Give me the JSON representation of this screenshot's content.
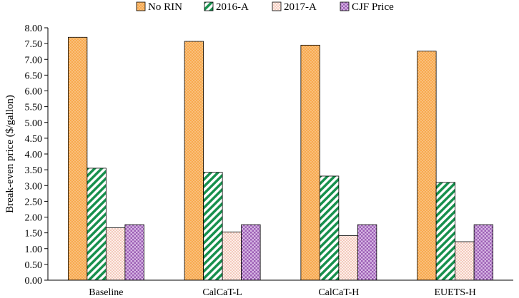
{
  "chart_data": {
    "type": "bar",
    "title": "",
    "xlabel": "",
    "ylabel": "Break-even price ($/gallon)",
    "ylim": [
      0,
      8
    ],
    "yticks": [
      "0.00",
      "0.50",
      "1.00",
      "1.50",
      "2.00",
      "2.50",
      "3.00",
      "3.50",
      "4.00",
      "4.50",
      "5.00",
      "5.50",
      "6.00",
      "6.50",
      "7.00",
      "7.50",
      "8.00"
    ],
    "categories": [
      "Baseline",
      "CalCaT-L",
      "CalCaT-H",
      "EUETS-H"
    ],
    "series": [
      {
        "name": "No RIN",
        "values": [
          7.7,
          7.57,
          7.45,
          7.26
        ],
        "color": "#f4a460",
        "pattern": "dots-orange"
      },
      {
        "name": "2016-A",
        "values": [
          3.55,
          3.42,
          3.3,
          3.1
        ],
        "color": "#1a8a4a",
        "pattern": "diagonal-green"
      },
      {
        "name": "2017-A",
        "values": [
          1.66,
          1.53,
          1.41,
          1.22
        ],
        "color": "#f6d4c8",
        "pattern": "dots-pink"
      },
      {
        "name": "CJF Price",
        "values": [
          1.76,
          1.76,
          1.76,
          1.76
        ],
        "color": "#b07cc6",
        "pattern": "checker-purple"
      }
    ],
    "legend_position": "top",
    "grid": false
  }
}
